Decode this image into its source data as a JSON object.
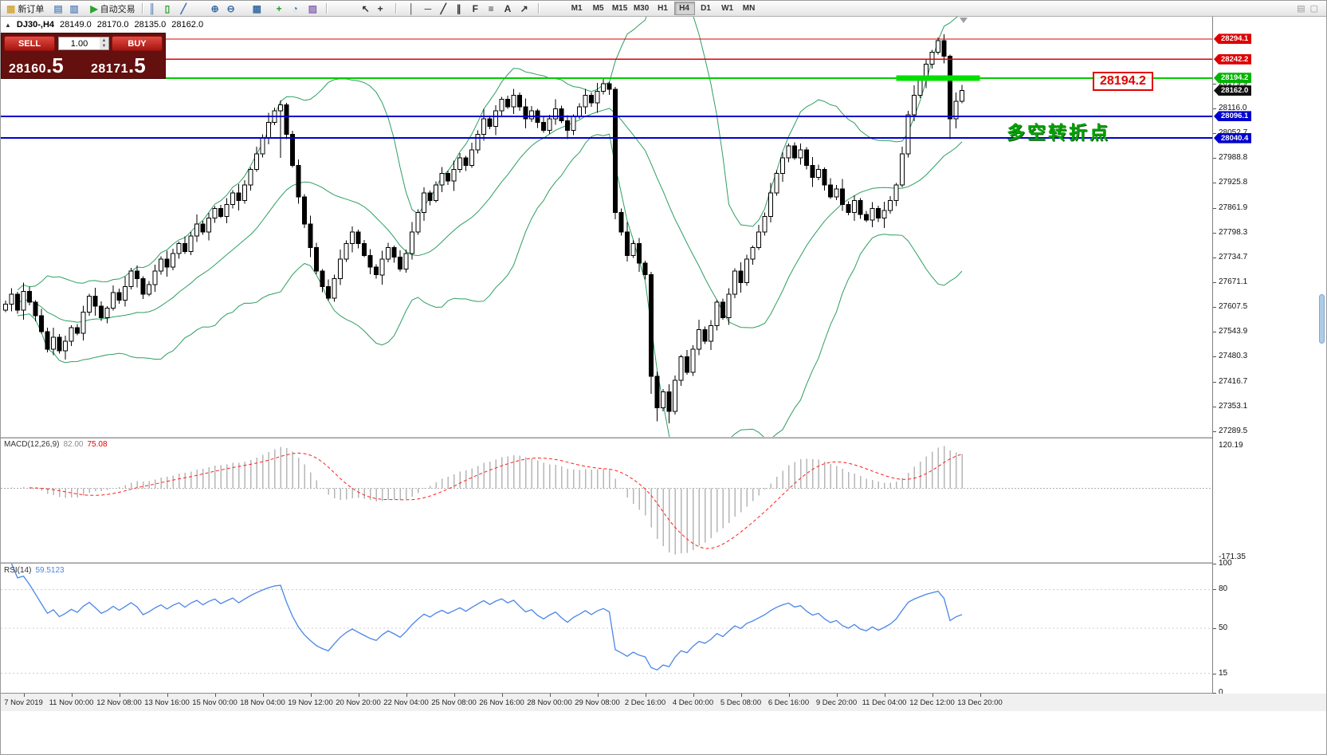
{
  "toolbar": {
    "items": [
      {
        "name": "new-order-button",
        "glyph": "▦",
        "color": "#d8a93a",
        "label": "新订单"
      },
      {
        "name": "chart-windows-icon",
        "glyph": "▤",
        "color": "#6a8fc0",
        "gap": 6
      },
      {
        "name": "data-window-icon",
        "glyph": "▥",
        "color": "#6a8fc0"
      },
      {
        "name": "autotrade-button",
        "glyph": "▶",
        "color": "#2da12d",
        "label": "自动交易",
        "gap": 6
      },
      {
        "sep": true
      },
      {
        "name": "bar-chart-icon",
        "glyph": "║",
        "color": "#3a6ea5"
      },
      {
        "name": "candle-chart-icon",
        "glyph": "▯",
        "color": "#2da12d"
      },
      {
        "name": "line-chart-icon",
        "glyph": "╱",
        "color": "#3a6ea5"
      },
      {
        "name": "zoom-in-icon",
        "glyph": "⊕",
        "color": "#3a6ea5",
        "gap": 18
      },
      {
        "name": "zoom-out-icon",
        "glyph": "⊖",
        "color": "#3a6ea5"
      },
      {
        "name": "tile-windows-icon",
        "glyph": "▦",
        "color": "#3a6ea5",
        "gap": 12
      },
      {
        "name": "add-indicator-icon",
        "glyph": "+",
        "color": "#1f9e1f",
        "gap": 10
      },
      {
        "name": "period-icon",
        "glyph": "◔",
        "color": "#3a6ea5"
      },
      {
        "name": "template-icon",
        "glyph": "▨",
        "color": "#8a6ab0"
      },
      {
        "sep": true
      },
      {
        "name": "cursor-icon",
        "glyph": "↖",
        "color": "#333333",
        "gap": 36
      },
      {
        "name": "crosshair-icon",
        "glyph": "+",
        "color": "#333333"
      },
      {
        "sep": true
      },
      {
        "name": "vertical-line-icon",
        "glyph": "│",
        "color": "#333333",
        "gap": 8
      },
      {
        "name": "horizontal-line-icon",
        "glyph": "─",
        "color": "#333333"
      },
      {
        "name": "trendline-icon",
        "glyph": "╱",
        "color": "#333333"
      },
      {
        "name": "channel-icon",
        "glyph": "∥",
        "color": "#333333"
      },
      {
        "name": "fibonacci-icon",
        "glyph": "F",
        "color": "#333333"
      },
      {
        "name": "shapes-icon",
        "glyph": "≡",
        "color": "#333333"
      },
      {
        "name": "text-icon",
        "glyph": "A",
        "color": "#333333"
      },
      {
        "name": "arrow-marker-icon",
        "glyph": "↗",
        "color": "#333333"
      },
      {
        "sep": true
      }
    ],
    "timeframes": [
      "M1",
      "M5",
      "M15",
      "M30",
      "H1",
      "H4",
      "D1",
      "W1",
      "MN"
    ],
    "active_timeframe": "H4",
    "right_icons": [
      {
        "name": "dock-icon",
        "glyph": "▤"
      },
      {
        "name": "restore-window-icon",
        "glyph": "▢"
      }
    ]
  },
  "symbol_info": {
    "symbol": "DJ30-,H4",
    "open": "28149.0",
    "high": "28170.0",
    "low": "28135.0",
    "close": "28162.0"
  },
  "trade_panel": {
    "sell_label": "SELL",
    "buy_label": "BUY",
    "lot": "1.00",
    "sell_price": "28160.5",
    "buy_price": "28171.5"
  },
  "annotations": {
    "turning_point": "多空转折点",
    "price_callout": "28194.2"
  },
  "indicators": {
    "macd": {
      "label": "MACD(12,26,9)",
      "value_main": "82.00",
      "value_signal": "75.08",
      "axis_max": "120.19",
      "axis_min": "-171.35",
      "fast": 12,
      "slow": 26,
      "signal": 9
    },
    "rsi": {
      "label": "RSI(14)",
      "value": "59.5123",
      "period": 14,
      "axis_labels": [
        100,
        80,
        50,
        15,
        0
      ],
      "levels": [
        80,
        50,
        15
      ]
    }
  },
  "chart_data": {
    "type": "candlestick",
    "symbol": "DJ30",
    "timeframe": "H4",
    "price_axis": {
      "min": 27275,
      "max": 28351,
      "labels": [
        28179.9,
        28116.0,
        28052.7,
        27988.8,
        27925.8,
        27861.9,
        27798.3,
        27734.7,
        27671.1,
        27607.5,
        27543.9,
        27480.3,
        27416.7,
        27353.1,
        27289.5
      ]
    },
    "time_labels": [
      "7 Nov 2019",
      "11 Nov 00:00",
      "12 Nov 08:00",
      "13 Nov 16:00",
      "15 Nov 00:00",
      "18 Nov 04:00",
      "19 Nov 12:00",
      "20 Nov 20:00",
      "22 Nov 04:00",
      "25 Nov 08:00",
      "26 Nov 16:00",
      "28 Nov 00:00",
      "29 Nov 08:00",
      "2 Dec 16:00",
      "4 Dec 00:00",
      "5 Dec 08:00",
      "6 Dec 16:00",
      "9 Dec 20:00",
      "11 Dec 04:00",
      "12 Dec 12:00",
      "13 Dec 20:00"
    ],
    "candles": {
      "first_open": 27600,
      "closes": [
        27615,
        27640,
        27600,
        27648,
        27620,
        27585,
        27545,
        27500,
        27530,
        27495,
        27520,
        27555,
        27540,
        27595,
        27635,
        27610,
        27580,
        27605,
        27645,
        27625,
        27660,
        27700,
        27680,
        27640,
        27665,
        27700,
        27730,
        27710,
        27745,
        27770,
        27750,
        27790,
        27820,
        27800,
        27835,
        27860,
        27840,
        27870,
        27900,
        27880,
        27920,
        27960,
        28000,
        28040,
        28080,
        28110,
        28125,
        28050,
        27970,
        27890,
        27820,
        27760,
        27700,
        27660,
        27630,
        27680,
        27730,
        27770,
        27800,
        27770,
        27740,
        27710,
        27690,
        27730,
        27760,
        27735,
        27705,
        27745,
        27800,
        27850,
        27900,
        27880,
        27920,
        27950,
        27930,
        27960,
        27990,
        27970,
        28010,
        28050,
        28090,
        28070,
        28110,
        28140,
        28120,
        28150,
        28120,
        28090,
        28110,
        28080,
        28060,
        28090,
        28115,
        28085,
        28060,
        28095,
        28120,
        28150,
        28130,
        28160,
        28180,
        28165,
        27850,
        27800,
        27740,
        27770,
        27720,
        27690,
        27430,
        27350,
        27390,
        27340,
        27420,
        27480,
        27440,
        27500,
        27550,
        27520,
        27560,
        27620,
        27580,
        27640,
        27700,
        27670,
        27730,
        27760,
        27800,
        27840,
        27900,
        27950,
        27990,
        28020,
        27990,
        28010,
        27970,
        27940,
        27960,
        27920,
        27890,
        27910,
        27870,
        27850,
        27880,
        27845,
        27830,
        27860,
        27835,
        27855,
        27880,
        27920,
        28000,
        28100,
        28150,
        28190,
        28230,
        28260,
        28290,
        28250,
        28090,
        28135,
        28162
      ],
      "wick_pattern": [
        9,
        16,
        7,
        22,
        12,
        5,
        18,
        10,
        25,
        8,
        14,
        6
      ],
      "wick_overrides": {
        "46": [
          12,
          120
        ],
        "102": [
          6,
          18
        ],
        "108": [
          8,
          45
        ],
        "109": [
          12,
          35
        ],
        "111": [
          20,
          30
        ],
        "156": [
          8,
          6
        ],
        "158": [
          4,
          52
        ],
        "160": [
          14,
          6
        ]
      }
    },
    "bollinger": {
      "period": 20,
      "deviation": 2
    },
    "hlines": [
      {
        "price": 28294.1,
        "color": "#e00000",
        "width": 1.3
      },
      {
        "price": 28242.2,
        "color": "#e00000",
        "width": 1.3
      },
      {
        "price": 28194.2,
        "color": "#00cc00",
        "width": 2
      },
      {
        "price": 28096.1,
        "color": "#0000cc",
        "width": 2
      },
      {
        "price": 28040.4,
        "color": "#0000cc",
        "width": 2
      }
    ],
    "price_tags": [
      {
        "price": 28294.1,
        "bg": "#dd0000"
      },
      {
        "price": 28242.2,
        "bg": "#dd0000"
      },
      {
        "price": 28194.2,
        "bg": "#00b400"
      },
      {
        "price": 28162.0,
        "bg": "#101010"
      },
      {
        "price": 28096.1,
        "bg": "#0000cc"
      },
      {
        "price": 28040.4,
        "bg": "#0000cc"
      }
    ],
    "highlight_bar": {
      "price": 28194.2,
      "from_bar": 149,
      "to_bar": 163,
      "color": "#00e000"
    }
  }
}
